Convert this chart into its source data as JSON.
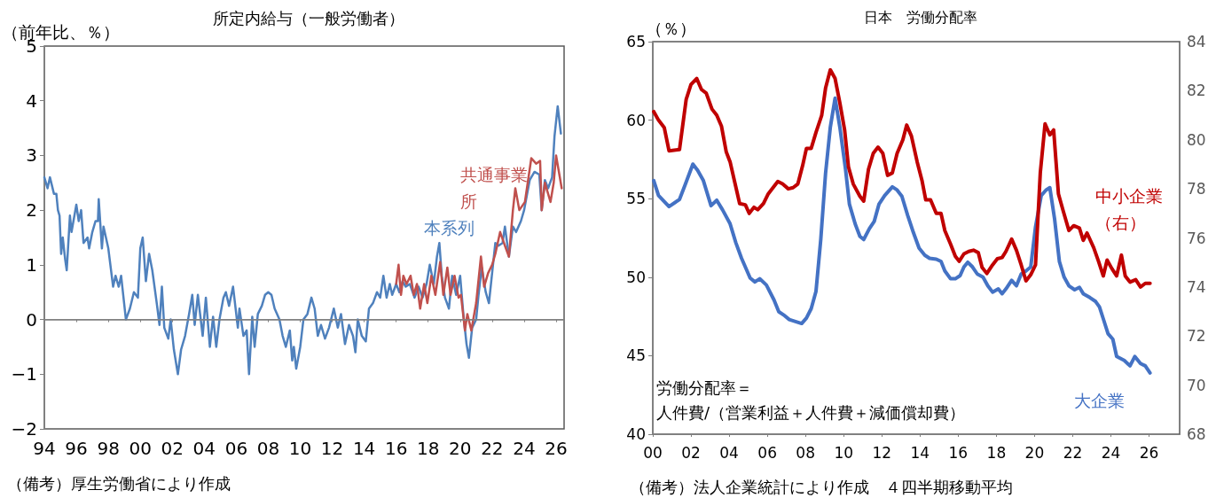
{
  "chart_data": [
    {
      "type": "line",
      "title": "所定内給与（一般労働者）",
      "ylabel": "（前年比、％）",
      "marker": "none",
      "line_style": "solid",
      "xlim": [
        1994,
        2026.5
      ],
      "xticks": [
        {
          "value": 1994,
          "label": "94"
        },
        {
          "value": 1996,
          "label": "96"
        },
        {
          "value": 1998,
          "label": "98"
        },
        {
          "value": 2000,
          "label": "00"
        },
        {
          "value": 2002,
          "label": "02"
        },
        {
          "value": 2004,
          "label": "04"
        },
        {
          "value": 2006,
          "label": "06"
        },
        {
          "value": 2008,
          "label": "08"
        },
        {
          "value": 2010,
          "label": "10"
        },
        {
          "value": 2012,
          "label": "12"
        },
        {
          "value": 2014,
          "label": "14"
        },
        {
          "value": 2016,
          "label": "16"
        },
        {
          "value": 2018,
          "label": "18"
        },
        {
          "value": 2020,
          "label": "20"
        },
        {
          "value": 2022,
          "label": "22"
        },
        {
          "value": 2024,
          "label": "24"
        },
        {
          "value": 2026,
          "label": "26"
        }
      ],
      "ylim": [
        -2,
        5
      ],
      "yticks": [
        {
          "value": -2,
          "label": "−2"
        },
        {
          "value": -1,
          "label": "−1"
        },
        0,
        1,
        2,
        3,
        4,
        5
      ],
      "ref_lines": [
        {
          "axis": "y",
          "value": 0,
          "color": "#808080"
        }
      ],
      "annotations": [
        "（備考）厚生労働省により作成"
      ],
      "series": [
        {
          "name": "本系列",
          "color": "#4f81bd",
          "x": [
            1994.0,
            1994.2,
            1994.35,
            1994.6,
            1994.75,
            1994.85,
            1994.95,
            1995.05,
            1995.15,
            1995.3,
            1995.4,
            1995.6,
            1995.7,
            1996.0,
            1996.15,
            1996.3,
            1996.45,
            1996.7,
            1996.8,
            1997.0,
            1997.2,
            1997.35,
            1997.4,
            1997.6,
            1997.7,
            1998.0,
            1998.3,
            1998.45,
            1998.65,
            1998.8,
            1999.1,
            1999.35,
            1999.6,
            1999.85,
            2000.0,
            2000.15,
            2000.35,
            2000.55,
            2000.75,
            2001.05,
            2001.2,
            2001.35,
            2001.5,
            2001.75,
            2001.9,
            2002.1,
            2002.35,
            2002.55,
            2002.8,
            2003.05,
            2003.25,
            2003.4,
            2003.6,
            2003.9,
            2004.1,
            2004.35,
            2004.55,
            2004.75,
            2004.95,
            2005.2,
            2005.35,
            2005.55,
            2005.8,
            2006.1,
            2006.2,
            2006.45,
            2006.65,
            2006.8,
            2007.0,
            2007.15,
            2007.35,
            2007.6,
            2007.8,
            2008.0,
            2008.2,
            2008.4,
            2008.7,
            2008.9,
            2009.1,
            2009.35,
            2009.5,
            2009.6,
            2009.75,
            2010.0,
            2010.2,
            2010.45,
            2010.7,
            2010.9,
            2011.1,
            2011.3,
            2011.55,
            2011.8,
            2012.1,
            2012.35,
            2012.55,
            2012.8,
            2013.05,
            2013.3,
            2013.45,
            2013.6,
            2013.85,
            2014.1,
            2014.3,
            2014.55,
            2014.8,
            2015.0,
            2015.2,
            2015.4,
            2015.6,
            2015.75,
            2016.0,
            2016.2,
            2016.4,
            2016.6,
            2016.85,
            2017.15,
            2017.4,
            2017.65,
            2017.9,
            2018.1,
            2018.35,
            2018.55,
            2018.7,
            2018.85,
            2019.05,
            2019.3,
            2019.5,
            2019.75,
            2020.0,
            2020.2,
            2020.4,
            2020.55,
            2020.75,
            2021.0,
            2021.15,
            2021.35,
            2021.6,
            2021.8,
            2022.0,
            2022.2,
            2022.4,
            2022.65,
            2022.8,
            2023.05,
            2023.3,
            2023.5,
            2023.8,
            2024.0,
            2024.35,
            2024.65,
            2024.95,
            2025.1,
            2025.3,
            2025.5,
            2025.75,
            2025.9,
            2026.1,
            2026.3
          ],
          "values": [
            2.6,
            2.4,
            2.6,
            2.3,
            2.3,
            2.0,
            1.9,
            1.2,
            1.5,
            1.1,
            0.9,
            1.9,
            1.6,
            2.1,
            1.8,
            2.0,
            1.4,
            1.5,
            1.3,
            1.6,
            1.8,
            1.8,
            2.2,
            1.3,
            1.7,
            1.3,
            0.6,
            0.8,
            0.6,
            0.8,
            0.0,
            0.2,
            0.5,
            0.4,
            1.3,
            1.5,
            0.7,
            1.2,
            0.9,
            0.25,
            -0.1,
            0.6,
            -0.15,
            -0.35,
            0.0,
            -0.55,
            -1.0,
            -0.55,
            -0.3,
            0.1,
            0.45,
            -0.1,
            0.45,
            -0.3,
            0.4,
            -0.5,
            0.05,
            -0.5,
            0.0,
            0.4,
            0.5,
            0.25,
            0.6,
            -0.15,
            0.2,
            -0.3,
            -0.2,
            -1.0,
            0.05,
            -0.5,
            0.1,
            0.25,
            0.45,
            0.5,
            0.45,
            0.2,
            0.0,
            -0.3,
            -0.5,
            -0.2,
            -0.75,
            -0.5,
            -0.9,
            -0.5,
            0.0,
            0.1,
            0.4,
            0.2,
            -0.3,
            -0.1,
            -0.35,
            -0.15,
            0.2,
            -0.15,
            0.1,
            -0.45,
            -0.1,
            -0.3,
            -0.6,
            0.0,
            -0.3,
            -0.4,
            0.2,
            0.3,
            0.5,
            0.4,
            0.8,
            0.4,
            0.65,
            0.45,
            0.65,
            0.5,
            0.7,
            0.6,
            0.65,
            0.4,
            0.6,
            0.4,
            0.65,
            1.0,
            0.65,
            1.15,
            1.4,
            0.8,
            0.4,
            0.2,
            0.8,
            0.45,
            0.8,
            0.1,
            -0.45,
            -0.7,
            -0.15,
            0.0,
            0.45,
            0.95,
            0.5,
            0.3,
            0.85,
            1.4,
            1.35,
            1.4,
            1.7,
            1.15,
            1.7,
            1.6,
            1.8,
            2.0,
            2.55,
            2.7,
            2.65,
            2.0,
            2.55,
            2.4,
            2.6,
            3.35,
            3.9,
            3.4
          ]
        },
        {
          "name": "共通事業所",
          "color": "#c0504d",
          "x": [
            2016.0,
            2016.15,
            2016.3,
            2016.45,
            2016.65,
            2016.9,
            2017.1,
            2017.3,
            2017.5,
            2017.75,
            2017.95,
            2018.2,
            2018.45,
            2018.75,
            2018.95,
            2019.2,
            2019.4,
            2019.65,
            2019.9,
            2020.05,
            2020.3,
            2020.45,
            2020.7,
            2021.0,
            2021.3,
            2021.5,
            2021.75,
            2022.0,
            2022.2,
            2022.5,
            2022.8,
            2023.05,
            2023.3,
            2023.45,
            2023.7,
            2024.05,
            2024.25,
            2024.45,
            2024.75,
            2025.0,
            2025.1,
            2025.3,
            2025.65,
            2025.85,
            2026.0,
            2026.35
          ],
          "values": [
            0.65,
            1.0,
            0.45,
            0.8,
            0.65,
            0.8,
            0.45,
            0.65,
            0.2,
            0.65,
            0.3,
            0.8,
            0.45,
            1.05,
            0.45,
            0.95,
            0.45,
            0.8,
            0.4,
            0.45,
            -0.2,
            0.1,
            -0.2,
            0.3,
            1.15,
            0.6,
            0.85,
            1.0,
            1.2,
            1.6,
            1.35,
            1.15,
            2.0,
            2.4,
            2.0,
            2.15,
            2.55,
            2.95,
            2.85,
            2.9,
            2.0,
            2.5,
            2.15,
            2.5,
            3.0,
            2.4
          ]
        }
      ]
    },
    {
      "type": "line",
      "title": "日本　労働分配率",
      "ylabel": "（％）",
      "marker": "none",
      "line_style": "solid",
      "xlim": [
        2000,
        2027.6
      ],
      "xticks": [
        {
          "value": 2000,
          "label": "00"
        },
        {
          "value": 2002,
          "label": "02"
        },
        {
          "value": 2004,
          "label": "04"
        },
        {
          "value": 2006,
          "label": "06"
        },
        {
          "value": 2008,
          "label": "08"
        },
        {
          "value": 2010,
          "label": "10"
        },
        {
          "value": 2012,
          "label": "12"
        },
        {
          "value": 2014,
          "label": "14"
        },
        {
          "value": 2016,
          "label": "16"
        },
        {
          "value": 2018,
          "label": "18"
        },
        {
          "value": 2020,
          "label": "20"
        },
        {
          "value": 2022,
          "label": "22"
        },
        {
          "value": 2024,
          "label": "24"
        },
        {
          "value": 2026,
          "label": "26"
        }
      ],
      "ylim": [
        40,
        65
      ],
      "yticks": [
        40,
        45,
        50,
        55,
        60,
        65
      ],
      "y2lim": [
        68,
        84
      ],
      "y2ticks": [
        68,
        70,
        72,
        74,
        76,
        78,
        80,
        82,
        84
      ],
      "annotations": [
        "労働分配率＝",
        "人件費/（営業利益＋人件費＋減価償却費）",
        "（備考）法人企業統計により作成　４四半期移動平均"
      ],
      "series": [
        {
          "name": "大企業",
          "color": "#4472c4",
          "x": [
            2000.05,
            2000.3,
            2000.85,
            2001.4,
            2001.7,
            2002.1,
            2002.35,
            2002.65,
            2003.05,
            2003.35,
            2003.65,
            2004.05,
            2004.35,
            2004.65,
            2005.1,
            2005.35,
            2005.6,
            2005.95,
            2006.35,
            2006.6,
            2006.85,
            2007.15,
            2007.8,
            2008.05,
            2008.3,
            2008.55,
            2008.8,
            2009.05,
            2009.3,
            2009.55,
            2009.8,
            2010.1,
            2010.3,
            2010.6,
            2010.85,
            2011.05,
            2011.35,
            2011.6,
            2011.85,
            2012.15,
            2012.55,
            2012.8,
            2013.05,
            2013.35,
            2013.65,
            2013.95,
            2014.25,
            2014.5,
            2014.85,
            2015.1,
            2015.3,
            2015.6,
            2015.85,
            2016.1,
            2016.3,
            2016.5,
            2016.75,
            2017.0,
            2017.3,
            2017.55,
            2017.8,
            2018.1,
            2018.3,
            2018.5,
            2018.8,
            2019.05,
            2019.3,
            2019.55,
            2019.8,
            2020.05,
            2020.35,
            2020.6,
            2020.8,
            2021.05,
            2021.3,
            2021.55,
            2021.8,
            2022.1,
            2022.35,
            2022.55,
            2022.9,
            2023.2,
            2023.4,
            2023.6,
            2023.85,
            2024.1,
            2024.3,
            2024.7,
            2025.0,
            2025.25,
            2025.55,
            2025.8,
            2026.05
          ],
          "values": [
            56.15,
            55.2,
            54.5,
            54.95,
            55.9,
            57.2,
            56.8,
            56.15,
            54.55,
            54.9,
            54.3,
            53.4,
            52.2,
            51.2,
            49.95,
            49.7,
            49.9,
            49.5,
            48.55,
            47.8,
            47.6,
            47.3,
            47.05,
            47.4,
            48.0,
            49.1,
            52.4,
            56.6,
            59.55,
            61.4,
            59.55,
            56.85,
            54.65,
            53.4,
            52.6,
            52.4,
            53.1,
            53.55,
            54.65,
            55.2,
            55.75,
            55.55,
            55.15,
            53.95,
            52.85,
            51.85,
            51.4,
            51.2,
            51.15,
            51.0,
            50.4,
            49.9,
            49.9,
            50.1,
            50.65,
            50.95,
            50.65,
            50.2,
            50.0,
            49.45,
            49.05,
            49.25,
            48.95,
            49.25,
            49.8,
            49.45,
            50.2,
            50.4,
            50.65,
            53.2,
            55.2,
            55.55,
            55.7,
            53.7,
            51.0,
            50.0,
            49.45,
            49.2,
            49.35,
            48.95,
            48.7,
            48.45,
            48.1,
            47.35,
            46.4,
            46.05,
            44.95,
            44.7,
            44.35,
            44.95,
            44.5,
            44.35,
            43.9
          ]
        },
        {
          "name": "中小企業（右）",
          "color": "#c00000",
          "axis": "y2",
          "x": [
            2000.05,
            2000.3,
            2000.6,
            2000.85,
            2001.4,
            2001.75,
            2002.0,
            2002.3,
            2002.55,
            2002.8,
            2003.1,
            2003.35,
            2003.6,
            2003.85,
            2004.05,
            2004.3,
            2004.55,
            2004.85,
            2005.05,
            2005.3,
            2005.5,
            2005.8,
            2006.05,
            2006.55,
            2006.8,
            2007.1,
            2007.35,
            2007.6,
            2007.85,
            2008.05,
            2008.3,
            2008.55,
            2008.85,
            2009.05,
            2009.3,
            2009.55,
            2009.8,
            2010.05,
            2010.25,
            2010.5,
            2010.85,
            2011.05,
            2011.3,
            2011.55,
            2011.8,
            2012.05,
            2012.3,
            2012.55,
            2012.8,
            2013.1,
            2013.3,
            2013.55,
            2013.85,
            2014.1,
            2014.3,
            2014.55,
            2014.85,
            2015.1,
            2015.3,
            2015.6,
            2015.85,
            2016.05,
            2016.3,
            2016.55,
            2016.8,
            2017.05,
            2017.25,
            2017.5,
            2017.8,
            2018.05,
            2018.3,
            2018.5,
            2018.8,
            2019.05,
            2019.3,
            2019.55,
            2019.8,
            2020.05,
            2020.3,
            2020.55,
            2020.8,
            2021.0,
            2021.25,
            2021.5,
            2021.8,
            2022.05,
            2022.35,
            2022.55,
            2022.75,
            2023.1,
            2023.35,
            2023.6,
            2023.8,
            2024.05,
            2024.3,
            2024.55,
            2024.75,
            2025.0,
            2025.3,
            2025.55,
            2025.8,
            2026.05
          ],
          "values": [
            81.15,
            80.8,
            80.5,
            79.55,
            79.6,
            81.65,
            82.25,
            82.5,
            82.05,
            81.9,
            81.25,
            81.0,
            80.55,
            79.5,
            79.1,
            78.25,
            77.4,
            77.35,
            77.0,
            77.25,
            77.15,
            77.4,
            77.8,
            78.3,
            78.2,
            78.0,
            78.05,
            78.2,
            78.95,
            79.65,
            79.65,
            80.3,
            81.0,
            82.1,
            82.85,
            82.5,
            81.5,
            80.4,
            78.9,
            78.2,
            77.7,
            77.5,
            78.8,
            79.45,
            79.7,
            79.45,
            78.55,
            78.65,
            79.45,
            80.0,
            80.6,
            80.15,
            79.1,
            78.35,
            77.55,
            77.55,
            77.0,
            77.0,
            76.3,
            75.75,
            75.25,
            75.05,
            75.35,
            75.45,
            75.5,
            75.4,
            74.8,
            74.55,
            74.9,
            75.15,
            75.2,
            75.45,
            75.95,
            75.5,
            74.9,
            74.25,
            74.5,
            74.9,
            78.65,
            80.65,
            80.2,
            80.4,
            77.8,
            77.1,
            76.3,
            76.5,
            76.4,
            75.9,
            76.2,
            75.6,
            75.05,
            74.45,
            75.1,
            74.75,
            74.45,
            75.3,
            74.45,
            74.2,
            74.3,
            74.0,
            74.15,
            74.15
          ]
        }
      ]
    }
  ]
}
